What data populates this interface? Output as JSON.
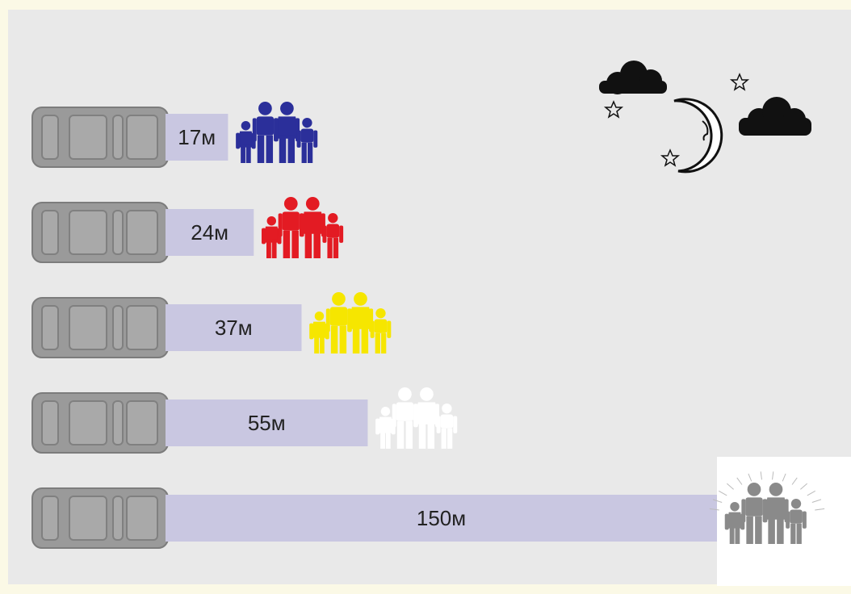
{
  "chart_data": {
    "type": "bar",
    "orientation": "horizontal",
    "values": [
      17,
      24,
      37,
      55,
      150
    ],
    "value_labels": [
      "17м",
      "24м",
      "37м",
      "55м",
      "150м"
    ],
    "bar_color": "#c9c7e1",
    "colors": [
      "#2b2f9a",
      "#e31b23",
      "#f6e600",
      "#ffffff",
      "#8a8a8a"
    ]
  }
}
